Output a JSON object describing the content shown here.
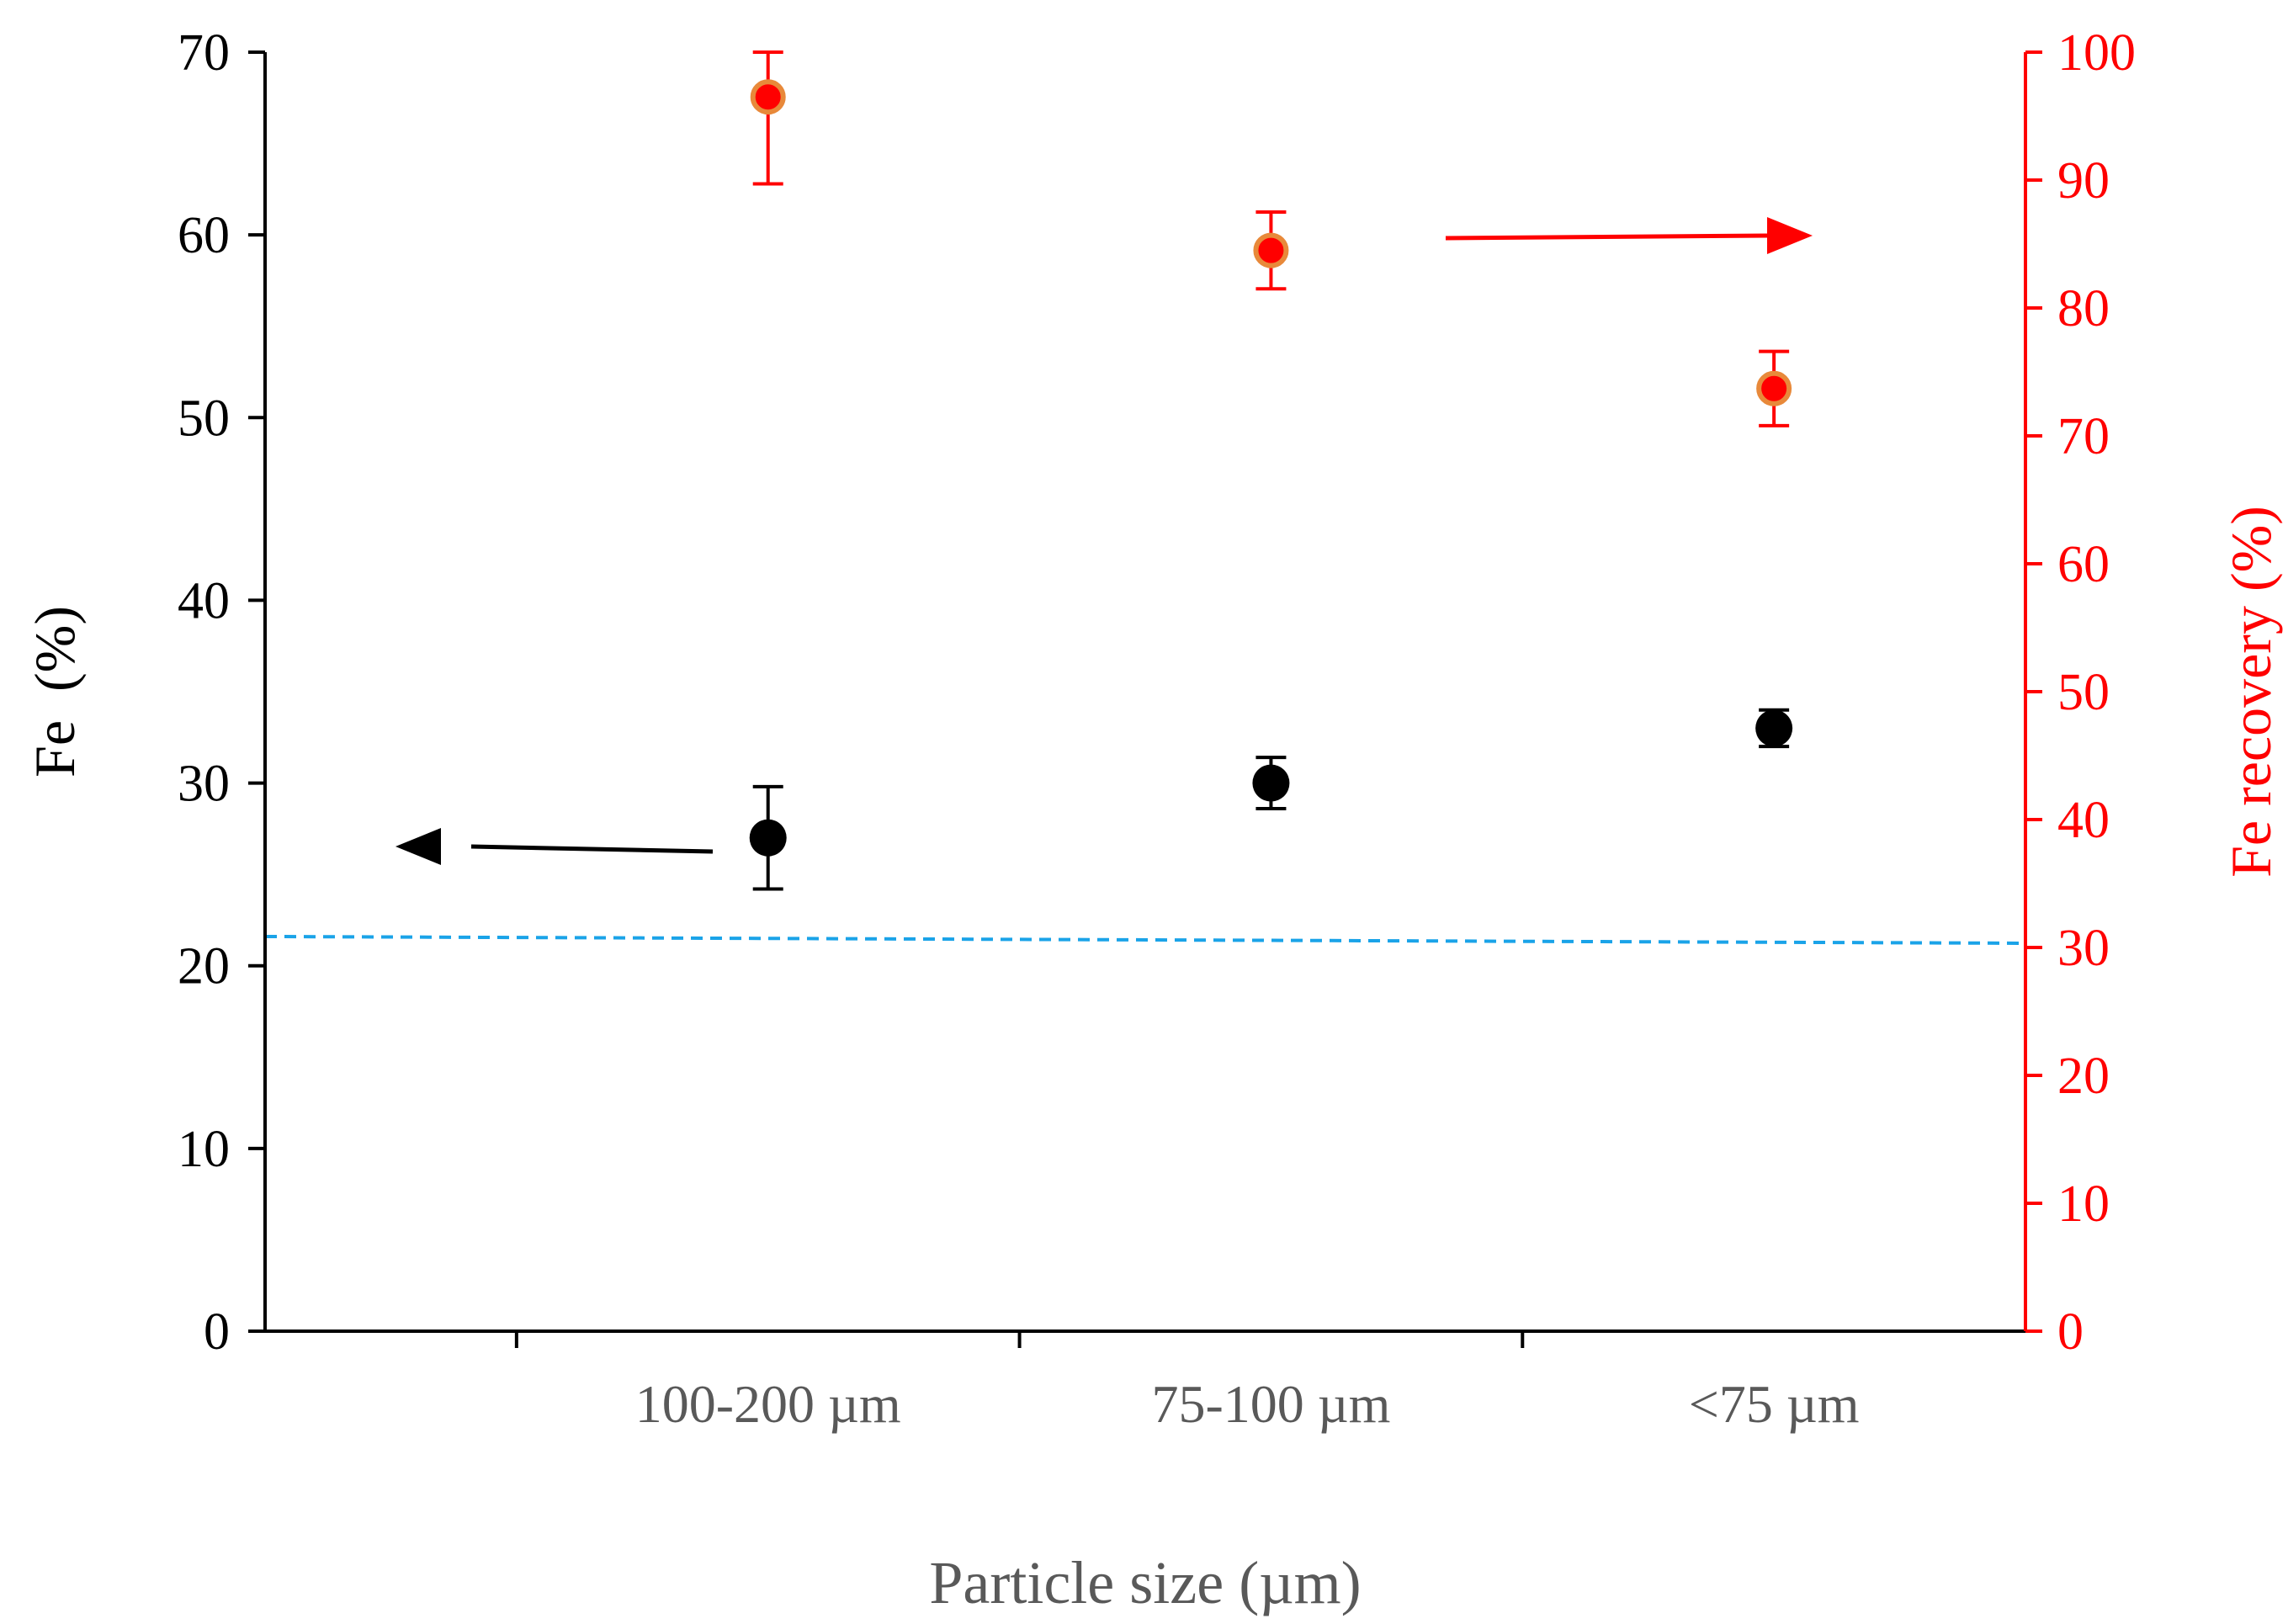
{
  "chart_data": {
    "type": "scatter",
    "title": "",
    "categories": [
      "100-200 µm",
      "75-100 µm",
      "<75  µm"
    ],
    "xlabel": "Particle size (µm)",
    "ylabel_left": "Fe  (%)",
    "ylabel_right": "Fe recovery (%)",
    "ylim_left": [
      0,
      70
    ],
    "ylim_right": [
      0,
      100
    ],
    "yticks_left": [
      "0",
      "10",
      "20",
      "30",
      "40",
      "50",
      "60",
      "70"
    ],
    "yticks_right": [
      "0",
      "10",
      "20",
      "30",
      "40",
      "50",
      "60",
      "70",
      "80",
      "90",
      "100"
    ],
    "grid": false,
    "series": [
      {
        "name": "Fe (%)",
        "axis": "left",
        "color": "#000000",
        "values": [
          27.0,
          30.0,
          33.0
        ],
        "errors": [
          2.8,
          1.4,
          1.0
        ]
      },
      {
        "name": "Fe recovery (%)",
        "axis": "right",
        "color": "#ff0000",
        "edge_color": "#e8893a",
        "values": [
          96.5,
          84.5,
          73.7
        ],
        "errors_up": [
          3.5,
          3.0,
          2.9
        ],
        "errors_down": [
          6.8,
          3.0,
          2.9
        ]
      }
    ],
    "reference_line": {
      "axis": "left",
      "value": 21.6,
      "color": "#1aa3e8",
      "style": "dashed"
    },
    "annotations": [
      {
        "type": "arrow",
        "direction": "left",
        "color": "#000000",
        "meaning": "Fe (%) series uses left axis"
      },
      {
        "type": "arrow",
        "direction": "right",
        "color": "#ff0000",
        "meaning": "Fe recovery series uses right axis"
      }
    ],
    "right_axis_color": "#ff0000"
  }
}
